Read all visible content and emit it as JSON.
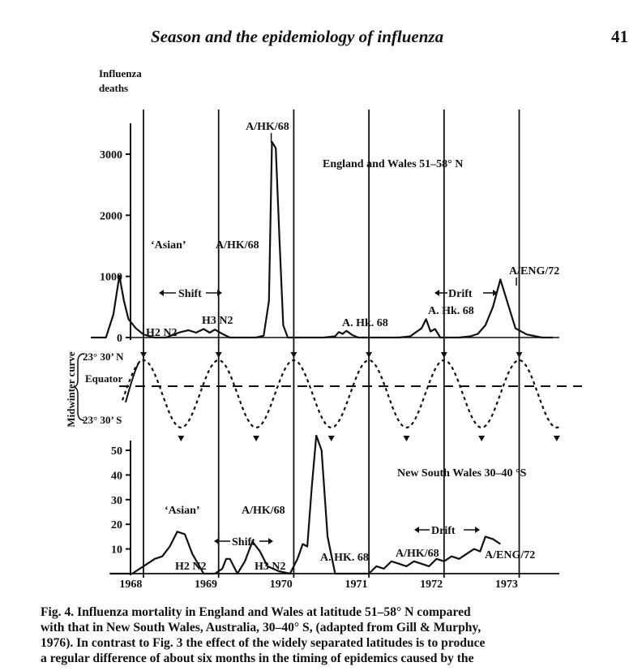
{
  "header": {
    "running_title": "Season and the epidemiology of influenza",
    "page_number": "41"
  },
  "chart_data": {
    "type": "line",
    "panels": [
      {
        "id": "england",
        "ylabel": [
          "Influenza",
          "deaths"
        ],
        "yticks": [
          0,
          1000,
          2000,
          3000
        ],
        "ylim": [
          0,
          3500
        ],
        "region_label": "England and Wales 51–58° N",
        "series": {
          "x": [
            1967.3,
            1967.5,
            1967.6,
            1967.68,
            1967.74,
            1967.8,
            1967.9,
            1968.0,
            1968.15,
            1968.3,
            1968.4,
            1968.5,
            1968.6,
            1968.7,
            1968.8,
            1968.88,
            1968.95,
            1969.05,
            1969.15,
            1969.25,
            1969.35,
            1969.5,
            1969.6,
            1969.67,
            1969.71,
            1969.76,
            1969.81,
            1969.86,
            1969.92,
            1970.0,
            1970.2,
            1970.4,
            1970.55,
            1970.6,
            1970.65,
            1970.7,
            1970.78,
            1970.86,
            1971.0,
            1971.2,
            1971.4,
            1971.55,
            1971.63,
            1971.7,
            1971.76,
            1971.82,
            1971.88,
            1971.95,
            1972.05,
            1972.2,
            1972.35,
            1972.45,
            1972.55,
            1972.65,
            1972.75,
            1972.85,
            1972.95,
            1973.1,
            1973.3,
            1973.45
          ],
          "y": [
            0,
            0,
            380,
            1010,
            600,
            300,
            150,
            50,
            0,
            0,
            50,
            90,
            120,
            80,
            140,
            80,
            130,
            60,
            0,
            0,
            0,
            0,
            30,
            600,
            3200,
            3100,
            1600,
            200,
            0,
            0,
            0,
            0,
            20,
            90,
            60,
            110,
            40,
            0,
            0,
            0,
            0,
            20,
            90,
            150,
            300,
            100,
            140,
            0,
            0,
            0,
            20,
            60,
            200,
            500,
            950,
            550,
            150,
            50,
            0,
            0
          ]
        },
        "annotations": {
          "asian": "‘Asian’",
          "h2n2": "H2 N2",
          "shift": "Shift",
          "a_hk68": "A/HK/68",
          "h3n2": "H3 N2",
          "a_hk68_peak": "A/HK/68",
          "a_hk_68_1970": "A. Hk. 68",
          "drift": "Drift",
          "a_hk_68_1971": "A. Hk. 68",
          "a_eng72": "A/ENG/72"
        }
      },
      {
        "id": "midwinter",
        "ylabel": "Midwinter curve",
        "north_label": "23° 30’ N",
        "equator_label": "Equator",
        "south_label": "23° 30’ S"
      },
      {
        "id": "nsw",
        "yticks": [
          10,
          20,
          30,
          40,
          50
        ],
        "ylim": [
          0,
          60
        ],
        "region_label": "New South Wales 30–40 °S",
        "series": {
          "x": [
            1967.55,
            1967.7,
            1967.85,
            1968.0,
            1968.15,
            1968.25,
            1968.35,
            1968.45,
            1968.55,
            1968.65,
            1968.8,
            1968.88,
            1968.95,
            1969.05,
            1969.1,
            1969.15,
            1969.25,
            1969.35,
            1969.45,
            1969.55,
            1969.65,
            1969.8,
            1969.95,
            1970.05,
            1970.12,
            1970.18,
            1970.24,
            1970.3,
            1970.37,
            1970.45,
            1970.55,
            1970.7,
            1970.85,
            1971.0,
            1971.1,
            1971.2,
            1971.3,
            1971.4,
            1971.5,
            1971.6,
            1971.7,
            1971.8,
            1971.9,
            1972.0,
            1972.1,
            1972.2,
            1972.3,
            1972.4,
            1972.48,
            1972.55,
            1972.65,
            1972.75
          ],
          "y": [
            0,
            0,
            0,
            3,
            6,
            7,
            11,
            17,
            16,
            8,
            0,
            0,
            0,
            2,
            6,
            6,
            0,
            5,
            13,
            9,
            3,
            1,
            0,
            6,
            12,
            11,
            35,
            56,
            50,
            15,
            0,
            0,
            0,
            0,
            3,
            2,
            5,
            4,
            3,
            5,
            4,
            3,
            6,
            5,
            7,
            6,
            8,
            10,
            9,
            15,
            14,
            12
          ]
        },
        "annotations": {
          "asian": "‘Asian’",
          "h2n2": "H2 N2",
          "shift": "Shift",
          "a_hk68": "A/HK/68",
          "h3n2": "H3 N2",
          "a_hk_68": "A. HK. 68",
          "drift": "Drift",
          "a_hk68_1971": "A/HK/68",
          "a_eng72": "A/ENG/72"
        }
      }
    ],
    "x_axis": {
      "ticks": [
        "1968",
        "1969",
        "1970",
        "1971",
        "1972",
        "1973"
      ],
      "xlim": [
        1967.45,
        1973.7
      ]
    },
    "midwinter_lines": [
      1968,
      1969,
      1970,
      1971,
      1972,
      1973
    ]
  },
  "caption": {
    "lines": [
      "Fig. 4. Influenza mortality in England and Wales at latitude 51–58° N compared",
      "with that in New South Wales, Australia, 30–40° S, (adapted from Gill & Murphy,",
      "1976). In contrast to Fig. 3 the effect of the widely separated latitudes is to produce",
      "a regular difference of about six months in the timing of epidemics caused by the"
    ]
  }
}
